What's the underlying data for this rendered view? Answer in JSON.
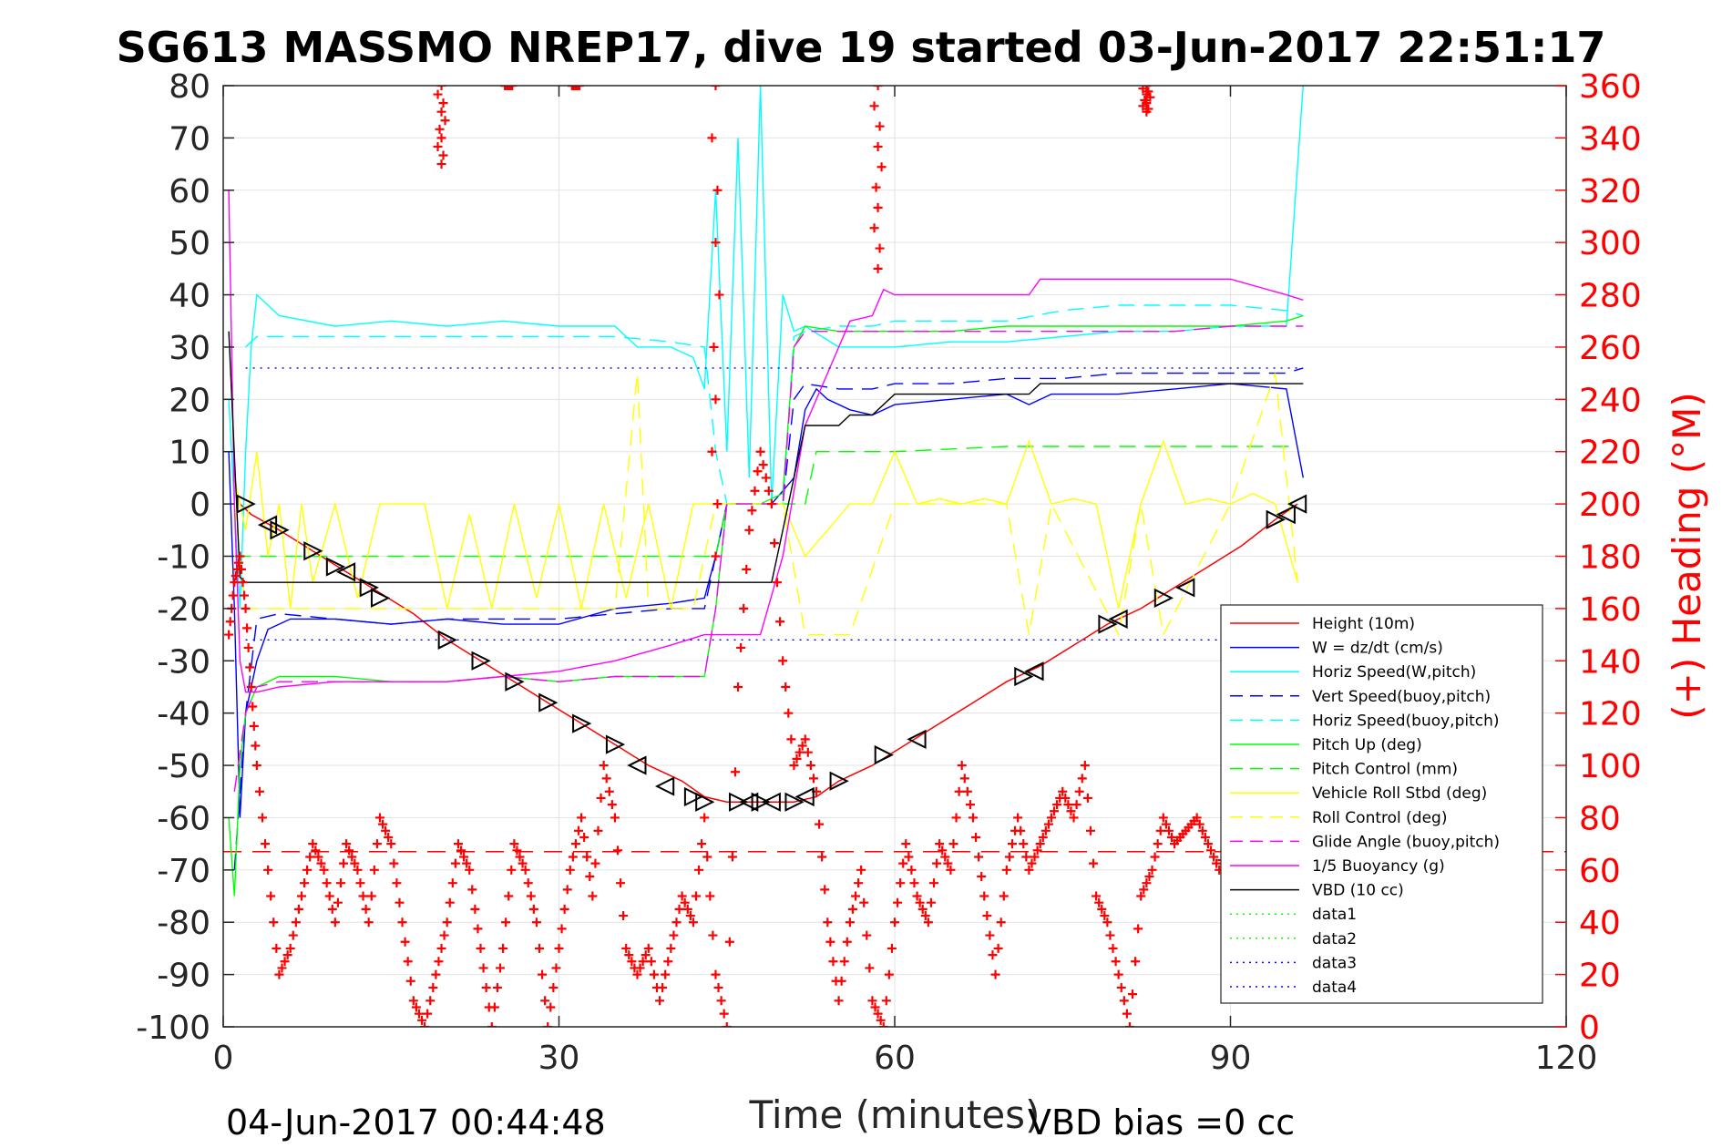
{
  "chart_data": {
    "type": "line",
    "title": "SG613 MASSMO NREP17, dive 19 started 03-Jun-2017 22:51:17",
    "xlabel": "Time (minutes)",
    "ylabel_left": "",
    "ylabel_right": "(+) Heading (°M)",
    "xlim": [
      0,
      120
    ],
    "ylim_left": [
      -100,
      80
    ],
    "ylim_right": [
      0,
      360
    ],
    "xticks": [
      "0",
      "30",
      "60",
      "90",
      "120"
    ],
    "yticks_left": [
      "80",
      "70",
      "60",
      "50",
      "40",
      "30",
      "20",
      "10",
      "0",
      "-10",
      "-20",
      "-30",
      "-40",
      "-50",
      "-60",
      "-70",
      "-80",
      "-90",
      "-100"
    ],
    "yticks_right": [
      "360",
      "340",
      "320",
      "300",
      "280",
      "260",
      "240",
      "220",
      "200",
      "180",
      "160",
      "140",
      "120",
      "100",
      "80",
      "60",
      "40",
      "20",
      "0"
    ],
    "grid": true,
    "legend_position": "lower-right",
    "annotation_left": "04-Jun-2017 00:44:48",
    "annotation_right": "VBD bias =0 cc",
    "colors": {
      "height": "#ff0000",
      "w": "#0000ff",
      "horiz_speed": "#00ffff",
      "vert_speed": "#0000ff",
      "horiz_speed_buoy": "#00ffff",
      "pitch": "#00ff00",
      "pitch_control": "#00ff00",
      "roll": "#ffff00",
      "roll_control": "#ffff00",
      "glide": "#ff00ff",
      "buoyancy": "#ff00ff",
      "vbd": "#000000",
      "heading": "#ff0000"
    },
    "series": [
      {
        "name": "Height (10m)",
        "style": "solid",
        "color": "#ff0000",
        "x": [
          1.5,
          2.5,
          5,
          8,
          11,
          14,
          17,
          20,
          23,
          26,
          29,
          32,
          35,
          38,
          41,
          43,
          45,
          47,
          49,
          51,
          53,
          55,
          58,
          61,
          64,
          67,
          70,
          73,
          76,
          79,
          82,
          85,
          88,
          91,
          94,
          96
        ],
        "y": [
          0,
          -2,
          -5,
          -9,
          -13,
          -17,
          -21,
          -26,
          -30,
          -34,
          -38,
          -42,
          -46,
          -50,
          -53,
          -56,
          -57,
          -57,
          -57,
          -57,
          -56,
          -53,
          -50,
          -46,
          -42,
          -38,
          -34,
          -31,
          -27,
          -23,
          -20,
          -16,
          -12,
          -8,
          -3,
          0
        ]
      },
      {
        "name": "W = dz/dt (cm/s)",
        "style": "solid",
        "color": "#0000ff",
        "x": [
          0.5,
          1,
          1.5,
          2,
          3,
          4,
          6,
          10,
          15,
          20,
          25,
          30,
          35,
          40,
          43,
          44,
          45,
          47,
          49,
          51,
          52,
          53,
          54,
          56,
          58,
          60,
          65,
          70,
          72,
          74,
          80,
          85,
          90,
          95,
          96.5
        ],
        "y": [
          10,
          -20,
          -60,
          -40,
          -30,
          -24,
          -22,
          -22,
          -23,
          -22,
          -23,
          -23,
          -20,
          -19,
          -18,
          -10,
          0,
          0,
          0,
          5,
          18,
          22,
          20,
          18,
          17,
          19,
          20,
          21,
          19,
          21,
          21,
          22,
          23,
          22,
          5
        ]
      },
      {
        "name": "Horiz Speed(W,pitch)",
        "style": "solid",
        "color": "#00ffff",
        "x": [
          0.5,
          1.5,
          2,
          2.5,
          3,
          5,
          10,
          15,
          20,
          25,
          30,
          35,
          37,
          40,
          42,
          43,
          44,
          45,
          46,
          47,
          48,
          49,
          50,
          51,
          52,
          55,
          58,
          60,
          65,
          70,
          75,
          80,
          85,
          90,
          95,
          96.5
        ],
        "y": [
          20,
          -20,
          10,
          30,
          40,
          36,
          34,
          35,
          34,
          35,
          34,
          34,
          30,
          30,
          28,
          22,
          60,
          10,
          70,
          5,
          80,
          0,
          40,
          33,
          34,
          30,
          30,
          30,
          31,
          31,
          32,
          33,
          33,
          34,
          34,
          80
        ]
      },
      {
        "name": "Vert Speed(buoy,pitch)",
        "style": "dash",
        "color": "#0000ff",
        "x": [
          1,
          2,
          3,
          5,
          10,
          15,
          20,
          25,
          30,
          35,
          40,
          43,
          44,
          45,
          50,
          51,
          52,
          55,
          58,
          60,
          65,
          70,
          75,
          80,
          85,
          90,
          95,
          96.5
        ],
        "y": [
          -70,
          -40,
          -22,
          -21,
          -22,
          -23,
          -22,
          -22,
          -22,
          -21,
          -20,
          -20,
          -10,
          0,
          0,
          20,
          23,
          22,
          22,
          23,
          23,
          24,
          24,
          25,
          25,
          25,
          25,
          26
        ]
      },
      {
        "name": "Horiz Speed(buoy,pitch)",
        "style": "dash",
        "color": "#00ffff",
        "x": [
          2,
          3,
          5,
          10,
          15,
          20,
          25,
          30,
          35,
          40,
          43,
          44,
          45,
          50,
          51,
          52,
          55,
          58,
          60,
          65,
          70,
          75,
          80,
          85,
          90,
          95,
          96.5
        ],
        "y": [
          30,
          32,
          32,
          32,
          32,
          32,
          32,
          32,
          32,
          31,
          30,
          10,
          0,
          0,
          32,
          33,
          34,
          34,
          35,
          35,
          35,
          37,
          38,
          38,
          38,
          37,
          36
        ]
      },
      {
        "name": "Pitch Up (deg)",
        "style": "solid",
        "color": "#00ff00",
        "x": [
          0.5,
          1,
          1.5,
          2,
          3,
          5,
          10,
          15,
          20,
          25,
          30,
          35,
          40,
          43,
          44,
          45,
          48,
          50,
          51,
          52,
          55,
          60,
          65,
          70,
          75,
          80,
          85,
          90,
          95,
          96.5
        ],
        "y": [
          -60,
          -75,
          -50,
          -40,
          -35,
          -33,
          -33,
          -34,
          -34,
          -33,
          -34,
          -33,
          -33,
          -33,
          -20,
          0,
          0,
          2,
          30,
          34,
          33,
          33,
          33,
          34,
          34,
          34,
          34,
          34,
          35,
          36
        ]
      },
      {
        "name": "Pitch Control (mm)",
        "style": "dash",
        "color": "#00ff00",
        "x": [
          1,
          2,
          5,
          10,
          20,
          30,
          40,
          44,
          45,
          52,
          53,
          55,
          60,
          70,
          80,
          90,
          96
        ],
        "y": [
          -10,
          -10,
          -10,
          -10,
          -10,
          -10,
          -10,
          -10,
          0,
          0,
          10,
          10,
          10,
          11,
          11,
          11,
          11
        ]
      },
      {
        "name": "Vehicle Roll Stbd (deg)",
        "style": "solid",
        "color": "#ffff00",
        "x": [
          1,
          2,
          3,
          4,
          5,
          6,
          7,
          8,
          10,
          12,
          14,
          18,
          20,
          22,
          24,
          26,
          28,
          30,
          32,
          34,
          36,
          38,
          40,
          42,
          44,
          46,
          48,
          50,
          52,
          54,
          56,
          58,
          60,
          62,
          64,
          66,
          68,
          70,
          72,
          74,
          76,
          78,
          80,
          82,
          84,
          86,
          88,
          90,
          92,
          94,
          96
        ],
        "y": [
          5,
          -5,
          10,
          -10,
          0,
          -20,
          0,
          -15,
          0,
          -18,
          0,
          0,
          -20,
          -2,
          -20,
          0,
          -18,
          0,
          -20,
          0,
          -18,
          0,
          -20,
          0,
          0,
          0,
          0,
          0,
          -10,
          -5,
          0,
          0,
          10,
          0,
          1,
          0,
          1,
          0,
          12,
          0,
          1,
          0,
          -20,
          0,
          12,
          0,
          1,
          0,
          2,
          0,
          -15
        ]
      },
      {
        "name": "Roll Control (deg)",
        "style": "dash",
        "color": "#ffff00",
        "x": [
          1,
          2,
          4,
          6,
          8,
          10,
          20,
          30,
          35,
          37,
          38,
          42,
          44,
          45,
          50,
          52,
          54,
          56,
          60,
          70,
          72,
          74,
          80,
          82,
          84,
          90,
          94,
          96
        ],
        "y": [
          0,
          -20,
          -20,
          -20,
          -20,
          -20,
          -20,
          -20,
          -20,
          25,
          -20,
          -20,
          0,
          0,
          0,
          -25,
          -25,
          -25,
          0,
          0,
          -25,
          0,
          -25,
          0,
          -25,
          0,
          25,
          -15
        ]
      },
      {
        "name": "Glide Angle (buoy,pitch)",
        "style": "dash",
        "color": "#ff00ff",
        "x": [
          1,
          2,
          3,
          5,
          10,
          15,
          20,
          25,
          30,
          35,
          40,
          43,
          44,
          45,
          50,
          51,
          52,
          55,
          60,
          65,
          70,
          75,
          80,
          85,
          90,
          95,
          96.5
        ],
        "y": [
          -55,
          -40,
          -35,
          -34,
          -34,
          -34,
          -34,
          -33,
          -34,
          -33,
          -33,
          -33,
          -20,
          0,
          0,
          30,
          33,
          33,
          33,
          33,
          33,
          33,
          33,
          33,
          34,
          34,
          34
        ]
      },
      {
        "name": "1/5 Buoyancy (g)",
        "style": "solid",
        "color": "#ff00ff",
        "x": [
          0.5,
          1,
          1.5,
          2,
          3,
          5,
          10,
          15,
          20,
          25,
          30,
          35,
          40,
          43,
          44,
          45,
          48,
          50,
          52,
          54,
          56,
          58,
          59,
          60,
          65,
          70,
          72,
          73,
          80,
          90,
          95,
          96.5
        ],
        "y": [
          60,
          0,
          -30,
          -36,
          -36,
          -35,
          -34,
          -34,
          -34,
          -33,
          -32,
          -30,
          -27,
          -25,
          -25,
          -25,
          -25,
          -10,
          15,
          25,
          35,
          36,
          41,
          40,
          40,
          40,
          40,
          43,
          43,
          43,
          40,
          39
        ]
      },
      {
        "name": "VBD (10 cc)",
        "style": "solid",
        "color": "#000000",
        "x": [
          0.5,
          1.2,
          1.5,
          2,
          5,
          10,
          20,
          30,
          40,
          44,
          47,
          49,
          50,
          51,
          52,
          53,
          55,
          56,
          57,
          58,
          60,
          72,
          73,
          90,
          96.5
        ],
        "y": [
          33,
          0,
          -14,
          -15,
          -15,
          -15,
          -15,
          -15,
          -15,
          -15,
          -15,
          -15,
          -5,
          5,
          15,
          15,
          15,
          17,
          17,
          17,
          21,
          21,
          23,
          23,
          23
        ]
      },
      {
        "name": "data1",
        "style": "dot",
        "color": "#00ff00",
        "x": [],
        "y": []
      },
      {
        "name": "data2",
        "style": "dot",
        "color": "#00ff00",
        "x": [],
        "y": []
      },
      {
        "name": "data3",
        "style": "dot",
        "color": "#0000ff",
        "x": [
          2,
          96
        ],
        "y": [
          26,
          26
        ]
      },
      {
        "name": "data4",
        "style": "dot",
        "color": "#0000ff",
        "x": [
          2,
          96
        ],
        "y": [
          -26,
          -26
        ]
      }
    ],
    "heading_reference": {
      "style": "dash",
      "color": "#ff0000",
      "y_right": 67
    },
    "heading": {
      "x": [
        0.5,
        1,
        1.5,
        2,
        2.5,
        3,
        4,
        5,
        6,
        7,
        8,
        9,
        10,
        11,
        12,
        13,
        14,
        15,
        16,
        17,
        18,
        19,
        20,
        21,
        22,
        23,
        24,
        25,
        26,
        27,
        28,
        29,
        30,
        31,
        32,
        33,
        34,
        35,
        36,
        37,
        38,
        39,
        40,
        41,
        42,
        43,
        44,
        45,
        46,
        47,
        48,
        49,
        50,
        51,
        52,
        53,
        54,
        55,
        56,
        57,
        58,
        59,
        60,
        61,
        62,
        63,
        64,
        65,
        66,
        67,
        68,
        69,
        70,
        71,
        72,
        73,
        74,
        75,
        76,
        77,
        78,
        79,
        80,
        81,
        82,
        83,
        84,
        85,
        86,
        87,
        88,
        89,
        90
      ],
      "y": [
        150,
        170,
        180,
        160,
        130,
        100,
        60,
        20,
        30,
        50,
        70,
        60,
        40,
        70,
        60,
        40,
        80,
        70,
        40,
        10,
        0,
        20,
        40,
        70,
        60,
        30,
        0,
        30,
        70,
        60,
        40,
        0,
        30,
        60,
        80,
        50,
        100,
        80,
        30,
        20,
        30,
        10,
        30,
        50,
        40,
        80,
        20,
        0,
        130,
        190,
        220,
        200,
        140,
        100,
        110,
        90,
        40,
        10,
        40,
        60,
        10,
        0,
        40,
        70,
        50,
        40,
        70,
        60,
        100,
        80,
        50,
        20,
        60,
        80,
        60,
        70,
        80,
        90,
        80,
        100,
        50,
        40,
        20,
        0,
        50,
        60,
        80,
        70,
        75,
        80,
        70,
        60,
        75
      ]
    },
    "heading_top_cluster": {
      "x": [
        19.5,
        25.5,
        31.5,
        44,
        58.5,
        82.5
      ],
      "y": [
        330,
        360,
        360,
        180,
        290,
        350
      ]
    },
    "glider_markers": {
      "x": [
        2,
        4,
        5,
        8,
        10,
        11,
        13,
        14,
        20,
        23,
        26,
        29,
        32,
        35,
        37,
        39.5,
        42,
        43,
        46,
        47,
        48,
        49,
        51,
        52,
        55,
        59,
        62,
        71.5,
        72.5,
        79,
        80,
        84,
        86,
        94,
        95,
        96
      ],
      "y": [
        0,
        -4,
        -5,
        -9,
        -12,
        -13,
        -16,
        -18,
        -26,
        -30,
        -34,
        -38,
        -42,
        -46,
        -50,
        -54,
        -56,
        -57,
        -57,
        -57,
        -57,
        -57,
        -57,
        -56,
        -53,
        -48,
        -45,
        -33,
        -32,
        -23,
        -22,
        -18,
        -16,
        -3,
        -2,
        0
      ],
      "dir": [
        "r",
        "l",
        "r",
        "r",
        "r",
        "l",
        "r",
        "r",
        "r",
        "r",
        "r",
        "r",
        "r",
        "r",
        "l",
        "l",
        "r",
        "r",
        "r",
        "l",
        "r",
        "l",
        "r",
        "l",
        "r",
        "r",
        "l",
        "r",
        "l",
        "r",
        "l",
        "r",
        "l",
        "r",
        "l",
        "l"
      ]
    }
  }
}
